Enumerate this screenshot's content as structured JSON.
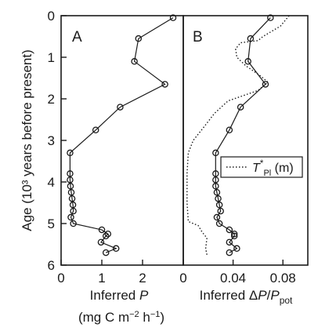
{
  "chart_data": {
    "type": "line",
    "ylabel": "Age (10³ years before present)",
    "y_axis": {
      "ticks": [
        0,
        1,
        2,
        3,
        4,
        5,
        6
      ],
      "ylim": [
        6,
        0
      ],
      "inverted": true
    },
    "panels": [
      {
        "label": "A",
        "xlabel_main": "Inferred  P",
        "xlabel_sub": "(mg C m⁻² h⁻¹)",
        "xlim": [
          0,
          3
        ],
        "xticks": [
          0,
          1,
          2
        ],
        "series": [
          {
            "style": "line-with-open-circles",
            "points": [
              [
                2.75,
                0.05
              ],
              [
                1.9,
                0.55
              ],
              [
                1.8,
                1.1
              ],
              [
                2.55,
                1.65
              ],
              [
                1.45,
                2.2
              ],
              [
                0.85,
                2.75
              ],
              [
                0.22,
                3.3
              ],
              [
                0.22,
                3.8
              ],
              [
                0.22,
                3.95
              ],
              [
                0.23,
                4.1
              ],
              [
                0.25,
                4.25
              ],
              [
                0.27,
                4.4
              ],
              [
                0.29,
                4.55
              ],
              [
                0.3,
                4.7
              ],
              [
                0.24,
                4.85
              ],
              [
                0.3,
                5.0
              ],
              [
                1.0,
                5.15
              ],
              [
                1.15,
                5.25
              ],
              [
                1.1,
                5.3
              ],
              [
                0.98,
                5.45
              ],
              [
                1.35,
                5.6
              ],
              [
                1.1,
                5.7
              ]
            ]
          }
        ]
      },
      {
        "label": "B",
        "xlabel_main": "Inferred ΔP/P",
        "xlabel_sub_pot": "pot",
        "xlim": [
          0,
          0.1
        ],
        "xticks": [
          0,
          0.04,
          0.08
        ],
        "xtick_labels": [
          "0",
          "0.04",
          "0.08"
        ],
        "series": [
          {
            "style": "line-with-open-circles",
            "points": [
              [
                0.07,
                0.05
              ],
              [
                0.054,
                0.55
              ],
              [
                0.052,
                1.1
              ],
              [
                0.066,
                1.65
              ],
              [
                0.046,
                2.2
              ],
              [
                0.037,
                2.75
              ],
              [
                0.026,
                3.3
              ],
              [
                0.026,
                3.8
              ],
              [
                0.026,
                3.95
              ],
              [
                0.026,
                4.1
              ],
              [
                0.027,
                4.25
              ],
              [
                0.028,
                4.4
              ],
              [
                0.029,
                4.55
              ],
              [
                0.03,
                4.7
              ],
              [
                0.027,
                4.85
              ],
              [
                0.029,
                5.0
              ],
              [
                0.037,
                5.15
              ],
              [
                0.041,
                5.25
              ],
              [
                0.041,
                5.3
              ],
              [
                0.037,
                5.45
              ],
              [
                0.043,
                5.6
              ],
              [
                0.037,
                5.7
              ]
            ]
          },
          {
            "name": "T*_Pl (m)",
            "style": "dotted",
            "points": [
              [
                0.085,
                0.0
              ],
              [
                0.078,
                0.25
              ],
              [
                0.064,
                0.5
              ],
              [
                0.06,
                0.6
              ],
              [
                0.046,
                0.65
              ],
              [
                0.042,
                0.8
              ],
              [
                0.043,
                1.0
              ],
              [
                0.05,
                1.2
              ],
              [
                0.062,
                1.45
              ],
              [
                0.068,
                1.6
              ],
              [
                0.06,
                1.8
              ],
              [
                0.036,
                2.05
              ],
              [
                0.025,
                2.35
              ],
              [
                0.016,
                2.7
              ],
              [
                0.008,
                3.0
              ],
              [
                0.004,
                3.3
              ],
              [
                0.003,
                3.8
              ],
              [
                0.003,
                4.5
              ],
              [
                0.004,
                4.95
              ],
              [
                0.012,
                5.05
              ],
              [
                0.015,
                5.2
              ],
              [
                0.019,
                5.35
              ],
              [
                0.018,
                5.6
              ],
              [
                0.019,
                5.75
              ]
            ]
          }
        ],
        "legend": {
          "placement": "middle-right",
          "entries": [
            "T*_Pl (m)"
          ]
        }
      }
    ]
  }
}
